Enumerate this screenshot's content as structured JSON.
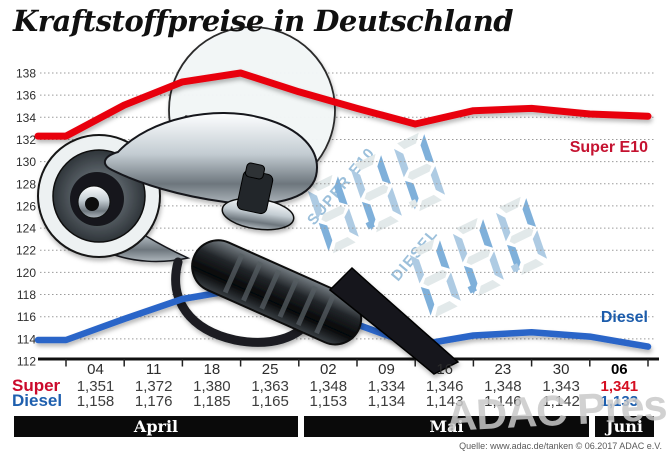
{
  "title": "Kraftstoffpreise in Deutschland",
  "chart_data": {
    "type": "line",
    "title": "Kraftstoffpreise in Deutschland",
    "x_tick_labels": [
      "04",
      "11",
      "18",
      "25",
      "02",
      "09",
      "16",
      "23",
      "30",
      "06"
    ],
    "ylim": [
      112,
      138
    ],
    "ytick_step": 2,
    "grid": true,
    "series": [
      {
        "name": "Super E10",
        "color": "#e8000f",
        "width": 7,
        "values": [
          135.1,
          137.2,
          138.0,
          136.3,
          134.8,
          133.4,
          134.6,
          134.8,
          134.3,
          134.1
        ],
        "lead_in": 132.3
      },
      {
        "name": "Diesel",
        "color": "#2a65c8",
        "width": 6.5,
        "values": [
          115.8,
          117.6,
          118.5,
          116.5,
          115.3,
          113.4,
          114.3,
          114.6,
          114.2,
          113.3
        ],
        "lead_in": 113.9
      }
    ],
    "months": [
      {
        "label": "April",
        "columns": [
          "04",
          "11",
          "18",
          "25"
        ]
      },
      {
        "label": "Mai",
        "columns": [
          "02",
          "09",
          "16",
          "23",
          "30"
        ]
      },
      {
        "label": "Juni",
        "columns": [
          "06"
        ]
      }
    ]
  },
  "table": {
    "dates": [
      "04",
      "11",
      "18",
      "25",
      "02",
      "09",
      "16",
      "23",
      "30",
      "06"
    ],
    "rows": [
      {
        "label": "Super",
        "values": [
          "1,351",
          "1,372",
          "1,380",
          "1,363",
          "1,348",
          "1,334",
          "1,346",
          "1,348",
          "1,343",
          "1,341"
        ]
      },
      {
        "label": "Diesel",
        "values": [
          "1,158",
          "1,176",
          "1,185",
          "1,165",
          "1,153",
          "1,134",
          "1,143",
          "1,146",
          "1,142",
          "1,133"
        ]
      }
    ]
  },
  "line_labels": {
    "super": "Super E10",
    "diesel": "Diesel"
  },
  "displays": {
    "super_label": "SUPER E10",
    "diesel_label": "DIESEL",
    "digits": "888"
  },
  "months": {
    "april": "April",
    "mai": "Mai",
    "juni": "Juni"
  },
  "watermark": "ADAC Presse",
  "source": "Quelle: www.adac.de/tanken   © 06.2017   ADAC e.V.",
  "colors": {
    "super_line": "#e8000f",
    "diesel_line": "#2a65c8",
    "super_text": "#c51230",
    "diesel_text": "#1c5cab",
    "display_blue": "#7fb0da",
    "watermark_gray": "#c9c9c9"
  }
}
